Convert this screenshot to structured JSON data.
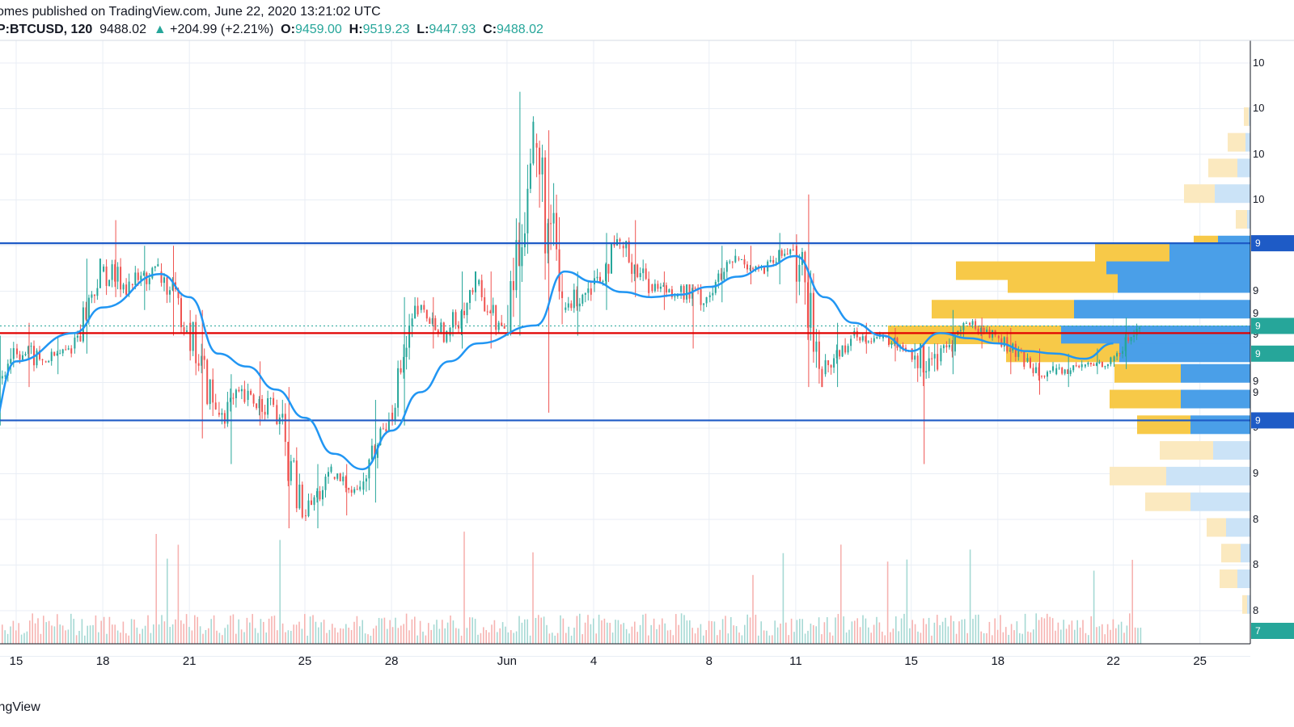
{
  "header": {
    "line1": "omes published on TradingView.com, June 22, 2020 13:21:02 UTC",
    "symbol": "P:BTCUSD, 120",
    "last": "9488.02",
    "change": "+204.99 (+2.21%)",
    "o_label": "O:",
    "o_value": "9459.00",
    "h_label": "H:",
    "h_value": "9519.23",
    "l_label": "L:",
    "l_value": "9447.93",
    "c_label": "C:",
    "c_value": "9488.02"
  },
  "footer": {
    "brand": "ingView"
  },
  "colors": {
    "up": "#26a69a",
    "down": "#ef5350",
    "ma": "#2196f3",
    "support_resistance": "#1e5bc6",
    "key_level": "#e00000",
    "vp_yellow": "#f7c948",
    "vp_blue": "#4a9fe8",
    "vp_yellow_light": "#fbe9bf",
    "vp_blue_light": "#cbe3f7"
  },
  "chart_data": {
    "type": "candlestick",
    "symbol": "BTCUSD",
    "interval": "120",
    "x_ticks": [
      "15",
      "18",
      "21",
      "25",
      "28",
      "Jun",
      "4",
      "8",
      "11",
      "15",
      "18",
      "22",
      "25"
    ],
    "y_ticks_partial": [
      "10",
      "10",
      "10",
      "10",
      "9",
      "9",
      "9",
      "9",
      "9",
      "9",
      "9",
      "9",
      "9",
      "8",
      "8",
      "8",
      "8",
      "7"
    ],
    "horizontal_lines": [
      {
        "name": "resistance",
        "value": 9810,
        "color": "#1e5bc6"
      },
      {
        "name": "key-level",
        "value": 9460,
        "color": "#e00000"
      },
      {
        "name": "support",
        "value": 9120,
        "color": "#1e5bc6"
      }
    ],
    "moving_average": {
      "points": [
        [
          "May 14",
          9050
        ],
        [
          "May 15",
          9350
        ],
        [
          "May 17",
          9460
        ],
        [
          "May 18",
          9560
        ],
        [
          "May 20",
          9690
        ],
        [
          "May 21",
          9600
        ],
        [
          "May 22",
          9380
        ],
        [
          "May 23",
          9330
        ],
        [
          "May 24",
          9240
        ],
        [
          "May 25",
          9130
        ],
        [
          "May 26",
          8990
        ],
        [
          "May 27",
          8930
        ],
        [
          "May 28",
          9080
        ],
        [
          "May 29",
          9230
        ],
        [
          "May 30",
          9350
        ],
        [
          "May 31",
          9420
        ],
        [
          "Jun 2",
          9490
        ],
        [
          "Jun 3",
          9700
        ],
        [
          "Jun 4",
          9660
        ],
        [
          "Jun 5",
          9620
        ],
        [
          "Jun 6",
          9600
        ],
        [
          "Jun 7",
          9610
        ],
        [
          "Jun 8",
          9640
        ],
        [
          "Jun 9",
          9680
        ],
        [
          "Jun 10",
          9720
        ],
        [
          "Jun 11",
          9760
        ],
        [
          "Jun 12",
          9600
        ],
        [
          "Jun 13",
          9500
        ],
        [
          "Jun 14",
          9450
        ],
        [
          "Jun 15",
          9390
        ],
        [
          "Jun 16",
          9460
        ],
        [
          "Jun 17",
          9440
        ],
        [
          "Jun 18",
          9420
        ],
        [
          "Jun 19",
          9390
        ],
        [
          "Jun 20",
          9380
        ],
        [
          "Jun 21",
          9360
        ],
        [
          "Jun 22",
          9420
        ]
      ]
    },
    "price_candles_approx": [
      [
        "May 14",
        9200,
        9450,
        9100,
        9400
      ],
      [
        "May 15",
        9400,
        9500,
        9250,
        9350
      ],
      [
        "May 16",
        9350,
        9450,
        9300,
        9400
      ],
      [
        "May 17",
        9400,
        9750,
        9380,
        9700
      ],
      [
        "May 18",
        9700,
        9900,
        9600,
        9650
      ],
      [
        "May 19",
        9650,
        9800,
        9550,
        9700
      ],
      [
        "May 20",
        9700,
        9800,
        9450,
        9500
      ],
      [
        "May 21",
        9500,
        9550,
        9050,
        9150
      ],
      [
        "May 22",
        9150,
        9300,
        8950,
        9200
      ],
      [
        "May 23",
        9200,
        9350,
        9100,
        9180
      ],
      [
        "May 24",
        9180,
        9250,
        8700,
        8750
      ],
      [
        "May 25",
        8750,
        8950,
        8700,
        8900
      ],
      [
        "May 26",
        8900,
        8950,
        8750,
        8850
      ],
      [
        "May 27",
        8850,
        9200,
        8800,
        9150
      ],
      [
        "May 28",
        9150,
        9600,
        9100,
        9550
      ],
      [
        "May 29",
        9550,
        9600,
        9400,
        9450
      ],
      [
        "May 30",
        9450,
        9700,
        9400,
        9650
      ],
      [
        "May 31",
        9650,
        9700,
        9400,
        9450
      ],
      [
        "Jun 1",
        9450,
        10400,
        9450,
        10200
      ],
      [
        "Jun 2",
        10200,
        10250,
        9150,
        9550
      ],
      [
        "Jun 3",
        9550,
        9700,
        9450,
        9650
      ],
      [
        "Jun 4",
        9650,
        9850,
        9550,
        9800
      ],
      [
        "Jun 5",
        9800,
        9900,
        9600,
        9650
      ],
      [
        "Jun 6",
        9650,
        9700,
        9550,
        9620
      ],
      [
        "Jun 7",
        9620,
        9650,
        9400,
        9600
      ],
      [
        "Jun 8",
        9600,
        9800,
        9580,
        9750
      ],
      [
        "Jun 9",
        9750,
        9800,
        9650,
        9700
      ],
      [
        "Jun 10",
        9700,
        9850,
        9650,
        9800
      ],
      [
        "Jun 11",
        9800,
        10000,
        9250,
        9300
      ],
      [
        "Jun 12",
        9300,
        9500,
        9250,
        9450
      ],
      [
        "Jun 13",
        9450,
        9500,
        9380,
        9440
      ],
      [
        "Jun 14",
        9440,
        9480,
        9350,
        9400
      ],
      [
        "Jun 15",
        9400,
        9420,
        8950,
        9350
      ],
      [
        "Jun 16",
        9350,
        9550,
        9300,
        9500
      ],
      [
        "Jun 17",
        9500,
        9520,
        9400,
        9450
      ],
      [
        "Jun 18",
        9450,
        9480,
        9300,
        9350
      ],
      [
        "Jun 19",
        9350,
        9400,
        9220,
        9300
      ],
      [
        "Jun 20",
        9300,
        9380,
        9250,
        9330
      ],
      [
        "Jun 21",
        9330,
        9400,
        9300,
        9350
      ],
      [
        "Jun 22",
        9350,
        9520,
        9320,
        9488
      ]
    ],
    "volume_profile_rows": [
      {
        "price": 10300,
        "up": 6,
        "down": 2
      },
      {
        "price": 10200,
        "up": 22,
        "down": 6
      },
      {
        "price": 10100,
        "up": 36,
        "down": 16
      },
      {
        "price": 10000,
        "up": 38,
        "down": 44
      },
      {
        "price": 9900,
        "up": 14,
        "down": 4
      },
      {
        "price": 9800,
        "up": 30,
        "down": 40
      },
      {
        "price": 9770,
        "up": 92,
        "down": 100
      },
      {
        "price": 9700,
        "up": 186,
        "down": 178
      },
      {
        "price": 9650,
        "up": 136,
        "down": 164
      },
      {
        "price": 9550,
        "up": 176,
        "down": 218
      },
      {
        "price": 9450,
        "up": 214,
        "down": 234
      },
      {
        "price": 9380,
        "up": 140,
        "down": 162
      },
      {
        "price": 9300,
        "up": 82,
        "down": 86
      },
      {
        "price": 9200,
        "up": 88,
        "down": 86
      },
      {
        "price": 9100,
        "up": 66,
        "down": 74
      },
      {
        "price": 9000,
        "up": 66,
        "down": 46
      },
      {
        "price": 8900,
        "up": 70,
        "down": 104
      },
      {
        "price": 8800,
        "up": 56,
        "down": 74
      },
      {
        "price": 8700,
        "up": 24,
        "down": 30
      },
      {
        "price": 8600,
        "up": 24,
        "down": 12
      },
      {
        "price": 8500,
        "up": 22,
        "down": 16
      },
      {
        "price": 8400,
        "up": 6,
        "down": 4
      }
    ],
    "y_range": [
      8250,
      10600
    ],
    "grid": true
  }
}
